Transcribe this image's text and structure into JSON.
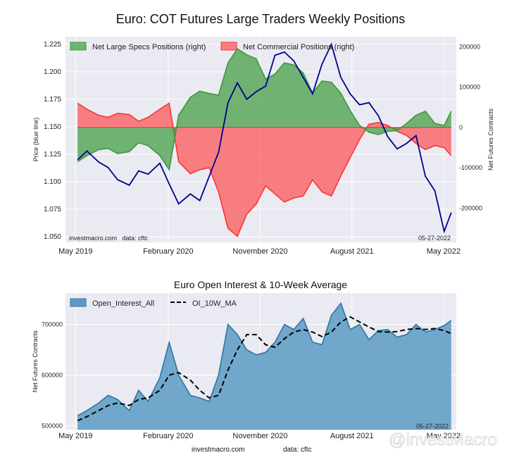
{
  "figure": {
    "title": "Euro: COT Futures Large Traders Weekly Positions",
    "watermark": "@investMacro",
    "footer_left": "investmacro.com",
    "footer_right": "data: cftc"
  },
  "chart_data": [
    {
      "type": "area",
      "title": "Euro: COT Futures Large Traders Weekly Positions",
      "ylabel": "Price (blue line)",
      "y2label": "Net Futures Contracts",
      "ylim": [
        1.045,
        1.232
      ],
      "y2lim": [
        -285000,
        225000
      ],
      "yticks": [
        "1.050",
        "1.075",
        "1.100",
        "1.125",
        "1.150",
        "1.175",
        "1.200",
        "1.225"
      ],
      "y2ticks": [
        "-200000",
        "-100000",
        "0",
        "100000",
        "200000"
      ],
      "xtick_labels": [
        "May 2019",
        "February 2020",
        "November 2020",
        "August 2021",
        "May 2022"
      ],
      "xtick_dates": [
        "2019-05-01",
        "2020-02-01",
        "2020-11-01",
        "2021-08-01",
        "2022-05-01"
      ],
      "xlim": [
        "2019-04-01",
        "2022-06-08"
      ],
      "grid": true,
      "legend_position": "top",
      "source_note": "investmacro.com   data: cftc",
      "date_note": "05-27-2022",
      "colors": {
        "specs": "#3c9a3c",
        "commercial": "#ff3333",
        "price": "#00008b"
      },
      "series": [
        {
          "name": "Net Large Specs Positions (right)",
          "kind": "area-right",
          "x": [
            "2019-05-07",
            "2019-06-04",
            "2019-07-09",
            "2019-08-06",
            "2019-09-03",
            "2019-10-08",
            "2019-11-05",
            "2019-12-03",
            "2020-01-07",
            "2020-02-04",
            "2020-03-03",
            "2020-04-07",
            "2020-05-05",
            "2020-06-02",
            "2020-06-30",
            "2020-07-28",
            "2020-08-25",
            "2020-09-22",
            "2020-10-20",
            "2020-11-17",
            "2020-12-15",
            "2021-01-12",
            "2021-02-09",
            "2021-03-09",
            "2021-04-06",
            "2021-05-04",
            "2021-06-01",
            "2021-06-29",
            "2021-07-27",
            "2021-08-24",
            "2021-09-21",
            "2021-10-19",
            "2021-11-16",
            "2021-12-14",
            "2022-01-11",
            "2022-02-08",
            "2022-03-08",
            "2022-04-05",
            "2022-05-03",
            "2022-05-24"
          ],
          "values": [
            -85000,
            -70000,
            -55000,
            -52000,
            -65000,
            -60000,
            -38000,
            -45000,
            -70000,
            -105000,
            30000,
            75000,
            90000,
            84000,
            80000,
            160000,
            195000,
            180000,
            170000,
            120000,
            132000,
            160000,
            155000,
            135000,
            85000,
            115000,
            112000,
            85000,
            42000,
            5000,
            -12000,
            -18000,
            -10000,
            -8000,
            10000,
            30000,
            40000,
            10000,
            5000,
            40000
          ]
        },
        {
          "name": "Net Commercial Positions (right)",
          "kind": "area-right",
          "x": [
            "2019-05-07",
            "2019-06-04",
            "2019-07-09",
            "2019-08-06",
            "2019-09-03",
            "2019-10-08",
            "2019-11-05",
            "2019-12-03",
            "2020-01-07",
            "2020-02-04",
            "2020-03-03",
            "2020-04-07",
            "2020-05-05",
            "2020-06-02",
            "2020-06-30",
            "2020-07-28",
            "2020-08-25",
            "2020-09-22",
            "2020-10-20",
            "2020-11-17",
            "2020-12-15",
            "2021-01-12",
            "2021-02-09",
            "2021-03-09",
            "2021-04-06",
            "2021-05-04",
            "2021-06-01",
            "2021-06-29",
            "2021-07-27",
            "2021-08-24",
            "2021-09-21",
            "2021-10-19",
            "2021-11-16",
            "2021-12-14",
            "2022-01-11",
            "2022-02-08",
            "2022-03-08",
            "2022-04-05",
            "2022-05-03",
            "2022-05-24"
          ],
          "values": [
            60000,
            45000,
            30000,
            25000,
            35000,
            32000,
            15000,
            25000,
            45000,
            60000,
            -85000,
            -115000,
            -105000,
            -100000,
            -160000,
            -250000,
            -270000,
            -215000,
            -190000,
            -145000,
            -165000,
            -185000,
            -175000,
            -170000,
            -130000,
            -160000,
            -170000,
            -120000,
            -75000,
            -30000,
            8000,
            12000,
            5000,
            -10000,
            -20000,
            -40000,
            -55000,
            -45000,
            -50000,
            -70000
          ]
        },
        {
          "name": "Price (blue line)",
          "kind": "line-left",
          "x": [
            "2019-05-07",
            "2019-06-04",
            "2019-07-09",
            "2019-08-06",
            "2019-09-03",
            "2019-10-08",
            "2019-11-05",
            "2019-12-03",
            "2020-01-07",
            "2020-02-04",
            "2020-03-03",
            "2020-04-07",
            "2020-05-05",
            "2020-06-02",
            "2020-06-30",
            "2020-07-28",
            "2020-08-25",
            "2020-09-22",
            "2020-10-20",
            "2020-11-17",
            "2020-12-15",
            "2021-01-12",
            "2021-02-09",
            "2021-03-09",
            "2021-04-06",
            "2021-05-04",
            "2021-06-01",
            "2021-06-29",
            "2021-07-27",
            "2021-08-24",
            "2021-09-21",
            "2021-10-19",
            "2021-11-16",
            "2021-12-14",
            "2022-01-11",
            "2022-02-08",
            "2022-03-08",
            "2022-04-05",
            "2022-05-03",
            "2022-05-24"
          ],
          "values": [
            1.12,
            1.128,
            1.118,
            1.113,
            1.102,
            1.097,
            1.11,
            1.107,
            1.117,
            1.098,
            1.08,
            1.089,
            1.083,
            1.105,
            1.127,
            1.172,
            1.19,
            1.175,
            1.182,
            1.187,
            1.215,
            1.218,
            1.21,
            1.195,
            1.18,
            1.207,
            1.225,
            1.195,
            1.18,
            1.17,
            1.172,
            1.16,
            1.141,
            1.13,
            1.135,
            1.142,
            1.105,
            1.092,
            1.055,
            1.072
          ]
        }
      ]
    },
    {
      "type": "area",
      "title": "Euro Open Interest & 10-Week Average",
      "ylabel": "Net Futures Contracts",
      "ylim": [
        492000,
        762000
      ],
      "yticks": [
        "500000",
        "600000",
        "700000"
      ],
      "xtick_labels": [
        "May 2019",
        "February 2020",
        "November 2020",
        "August 2021",
        "May 2022"
      ],
      "xtick_dates": [
        "2019-05-01",
        "2020-02-01",
        "2020-11-01",
        "2021-08-01",
        "2022-05-01"
      ],
      "xlim": [
        "2019-04-01",
        "2022-06-08"
      ],
      "grid": true,
      "legend_position": "top-left",
      "date_note": "05-27-2022",
      "colors": {
        "oi": "#5b9bc4",
        "oi_edge": "#2f75a5",
        "ma": "#000000"
      },
      "series": [
        {
          "name": "Open_Interest_All",
          "kind": "area",
          "x": [
            "2019-05-07",
            "2019-06-04",
            "2019-07-09",
            "2019-08-06",
            "2019-09-03",
            "2019-10-08",
            "2019-11-05",
            "2019-12-03",
            "2020-01-07",
            "2020-02-04",
            "2020-03-03",
            "2020-04-07",
            "2020-05-05",
            "2020-06-02",
            "2020-06-30",
            "2020-07-28",
            "2020-08-25",
            "2020-09-22",
            "2020-10-20",
            "2020-11-17",
            "2020-12-15",
            "2021-01-12",
            "2021-02-09",
            "2021-03-09",
            "2021-04-06",
            "2021-05-04",
            "2021-06-01",
            "2021-06-29",
            "2021-07-27",
            "2021-08-24",
            "2021-09-21",
            "2021-10-19",
            "2021-11-16",
            "2021-12-14",
            "2022-01-11",
            "2022-02-08",
            "2022-03-08",
            "2022-04-05",
            "2022-05-03",
            "2022-05-24"
          ],
          "values": [
            520000,
            530000,
            545000,
            560000,
            552000,
            530000,
            570000,
            548000,
            595000,
            665000,
            600000,
            560000,
            555000,
            548000,
            600000,
            700000,
            680000,
            650000,
            640000,
            645000,
            665000,
            700000,
            690000,
            712000,
            665000,
            660000,
            718000,
            742000,
            690000,
            700000,
            670000,
            688000,
            690000,
            675000,
            680000,
            700000,
            685000,
            690000,
            698000,
            708000
          ]
        },
        {
          "name": "OI_10W_MA",
          "kind": "line",
          "x": [
            "2019-05-07",
            "2019-06-04",
            "2019-07-09",
            "2019-08-06",
            "2019-09-03",
            "2019-10-08",
            "2019-11-05",
            "2019-12-03",
            "2020-01-07",
            "2020-02-04",
            "2020-03-03",
            "2020-04-07",
            "2020-05-05",
            "2020-06-02",
            "2020-06-30",
            "2020-07-28",
            "2020-08-25",
            "2020-09-22",
            "2020-10-20",
            "2020-11-17",
            "2020-12-15",
            "2021-01-12",
            "2021-02-09",
            "2021-03-09",
            "2021-04-06",
            "2021-05-04",
            "2021-06-01",
            "2021-06-29",
            "2021-07-27",
            "2021-08-24",
            "2021-09-21",
            "2021-10-19",
            "2021-11-16",
            "2021-12-14",
            "2022-01-11",
            "2022-02-08",
            "2022-03-08",
            "2022-04-05",
            "2022-05-03",
            "2022-05-24"
          ],
          "values": [
            510000,
            518000,
            530000,
            540000,
            545000,
            540000,
            552000,
            555000,
            570000,
            600000,
            605000,
            590000,
            570000,
            555000,
            560000,
            610000,
            650000,
            680000,
            680000,
            660000,
            655000,
            672000,
            685000,
            690000,
            685000,
            676000,
            685000,
            705000,
            715000,
            705000,
            695000,
            686000,
            685000,
            686000,
            690000,
            692000,
            690000,
            692000,
            688000,
            682000
          ]
        }
      ]
    }
  ]
}
